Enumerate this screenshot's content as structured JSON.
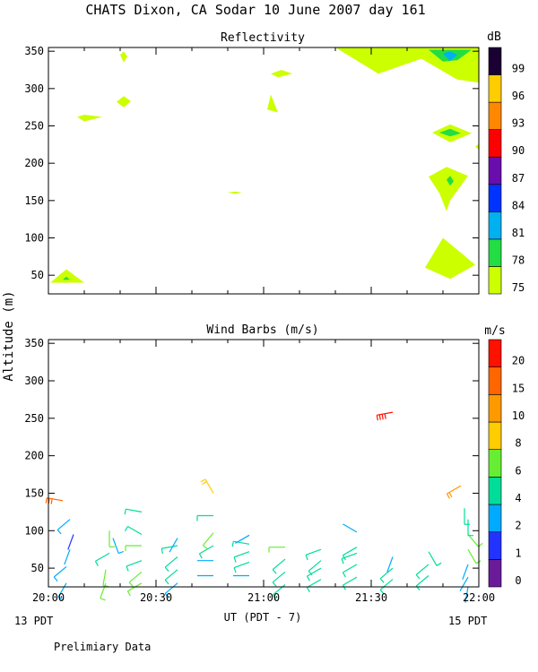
{
  "figure": {
    "title": "CHATS Dixon, CA  Sodar  10 June 2007  day 161",
    "ylabel": "Altitude (m)",
    "xlabel": "UT  (PDT - 7)",
    "start_local": "13 PDT",
    "end_local": "15 PDT",
    "footer": "Prelimiary Data"
  },
  "chart_data": [
    {
      "type": "heatmap",
      "title": "Reflectivity",
      "colorbar_label": "dB",
      "colorbar_ticks": [
        "75",
        "78",
        "81",
        "84",
        "87",
        "90",
        "93",
        "96",
        "99"
      ],
      "colorbar_colors": [
        "#ccff00",
        "#22dd44",
        "#00b0f0",
        "#0033ff",
        "#6a0dad",
        "#ff0000",
        "#ff8800",
        "#ffcc00",
        "#1a0033"
      ],
      "x_ticks": [
        "20:00",
        "20:30",
        "21:00",
        "21:30",
        "22:00"
      ],
      "xlim": [
        0,
        120
      ],
      "y_ticks": [
        50,
        100,
        150,
        200,
        250,
        300,
        350
      ],
      "ylim": [
        25,
        355
      ],
      "regions": [
        {
          "level": 75,
          "points": [
            [
              0.5,
              40
            ],
            [
              5,
              58
            ],
            [
              10,
              40
            ]
          ]
        },
        {
          "level": 78,
          "points": [
            [
              4,
              44
            ],
            [
              5,
              48
            ],
            [
              6,
              44
            ]
          ]
        },
        {
          "level": 75,
          "points": [
            [
              8,
              262
            ],
            [
              10,
              265
            ],
            [
              15,
              262
            ],
            [
              10,
              256
            ]
          ]
        },
        {
          "level": 75,
          "points": [
            [
              19,
              282
            ],
            [
              21,
              290
            ],
            [
              23,
              283
            ],
            [
              21,
              275
            ]
          ]
        },
        {
          "level": 75,
          "points": [
            [
              20,
              345
            ],
            [
              21,
              350
            ],
            [
              22,
              343
            ],
            [
              21,
              335
            ]
          ]
        },
        {
          "level": 75,
          "points": [
            [
              50,
              161
            ],
            [
              52,
              162
            ],
            [
              54,
              161
            ],
            [
              52,
              159
            ]
          ]
        },
        {
          "level": 75,
          "points": [
            [
              61,
              272
            ],
            [
              62,
              292
            ],
            [
              64,
              268
            ]
          ]
        },
        {
          "level": 75,
          "points": [
            [
              62,
              320
            ],
            [
              65,
              325
            ],
            [
              68,
              320
            ],
            [
              64,
              315
            ]
          ]
        },
        {
          "level": 75,
          "points": [
            [
              80,
              355
            ],
            [
              121,
              355
            ],
            [
              121,
              308
            ],
            [
              114,
              312
            ],
            [
              104,
              340
            ],
            [
              92,
              320
            ]
          ]
        },
        {
          "level": 78,
          "points": [
            [
              106,
              352
            ],
            [
              118,
              352
            ],
            [
              114,
              338
            ],
            [
              110,
              336
            ]
          ]
        },
        {
          "level": 81,
          "points": [
            [
              110,
              347
            ],
            [
              112,
              350
            ],
            [
              114,
              345
            ],
            [
              112,
              337
            ]
          ]
        },
        {
          "level": 75,
          "points": [
            [
              107,
              241
            ],
            [
              112,
              252
            ],
            [
              118,
              240
            ],
            [
              112,
              228
            ]
          ]
        },
        {
          "level": 78,
          "points": [
            [
              109,
              241
            ],
            [
              112,
              246
            ],
            [
              115,
              240
            ],
            [
              112,
              236
            ]
          ]
        },
        {
          "level": 75,
          "points": [
            [
              106,
              182
            ],
            [
              111,
              195
            ],
            [
              117,
              183
            ],
            [
              112,
              150
            ],
            [
              111,
              136
            ],
            [
              109,
              160
            ]
          ]
        },
        {
          "level": 78,
          "points": [
            [
              111,
              178
            ],
            [
              112,
              183
            ],
            [
              113,
              176
            ],
            [
              112,
              170
            ]
          ]
        },
        {
          "level": 75,
          "points": [
            [
              119,
              222
            ],
            [
              121,
              226
            ],
            [
              121,
              218
            ]
          ]
        },
        {
          "level": 75,
          "points": [
            [
              105,
              60
            ],
            [
              110,
              100
            ],
            [
              119,
              64
            ],
            [
              112,
              45
            ]
          ]
        }
      ]
    },
    {
      "type": "scatter",
      "title": "Wind Barbs (m/s)",
      "colorbar_label": "m/s",
      "colorbar_ticks": [
        "0",
        "1",
        "2",
        "4",
        "6",
        "8",
        "10",
        "15",
        "20"
      ],
      "colorbar_colors": [
        "#6a1b9a",
        "#2233ff",
        "#00aaff",
        "#00dd99",
        "#66ee33",
        "#ffcc00",
        "#ff9900",
        "#ff6600",
        "#ff1100"
      ],
      "x_ticks": [
        "20:00",
        "20:30",
        "21:00",
        "21:30",
        "22:00"
      ],
      "xlim": [
        0,
        120
      ],
      "y_ticks": [
        50,
        100,
        150,
        200,
        250,
        300,
        350
      ],
      "ylim": [
        25,
        355
      ],
      "barbs": [
        {
          "t": 5,
          "z": 30,
          "dir": 210,
          "speed": 3
        },
        {
          "t": 5,
          "z": 52,
          "dir": 230,
          "speed": 3
        },
        {
          "t": 6,
          "z": 75,
          "dir": 200,
          "speed": 2
        },
        {
          "t": 7,
          "z": 95,
          "dir": 200,
          "speed": 1
        },
        {
          "t": 6,
          "z": 115,
          "dir": 230,
          "speed": 3
        },
        {
          "t": 4,
          "z": 140,
          "dir": 280,
          "speed": 15
        },
        {
          "t": 16,
          "z": 30,
          "dir": 200,
          "speed": 6
        },
        {
          "t": 16,
          "z": 48,
          "dir": 190,
          "speed": 6
        },
        {
          "t": 17,
          "z": 70,
          "dir": 240,
          "speed": 4
        },
        {
          "t": 18,
          "z": 90,
          "dir": 160,
          "speed": 3
        },
        {
          "t": 17,
          "z": 100,
          "dir": 180,
          "speed": 6
        },
        {
          "t": 26,
          "z": 30,
          "dir": 240,
          "speed": 6
        },
        {
          "t": 26,
          "z": 45,
          "dir": 230,
          "speed": 6
        },
        {
          "t": 26,
          "z": 60,
          "dir": 250,
          "speed": 4
        },
        {
          "t": 26,
          "z": 80,
          "dir": 270,
          "speed": 6
        },
        {
          "t": 26,
          "z": 95,
          "dir": 300,
          "speed": 4
        },
        {
          "t": 26,
          "z": 125,
          "dir": 280,
          "speed": 4
        },
        {
          "t": 36,
          "z": 30,
          "dir": 230,
          "speed": 3
        },
        {
          "t": 36,
          "z": 48,
          "dir": 230,
          "speed": 4
        },
        {
          "t": 36,
          "z": 65,
          "dir": 230,
          "speed": 4
        },
        {
          "t": 36,
          "z": 80,
          "dir": 260,
          "speed": 4
        },
        {
          "t": 36,
          "z": 90,
          "dir": 210,
          "speed": 2
        },
        {
          "t": 46,
          "z": 40,
          "dir": 270,
          "speed": 2
        },
        {
          "t": 46,
          "z": 60,
          "dir": 270,
          "speed": 2
        },
        {
          "t": 46,
          "z": 80,
          "dir": 240,
          "speed": 4
        },
        {
          "t": 46,
          "z": 97,
          "dir": 220,
          "speed": 6
        },
        {
          "t": 46,
          "z": 120,
          "dir": 270,
          "speed": 4
        },
        {
          "t": 46,
          "z": 150,
          "dir": 330,
          "speed": 8
        },
        {
          "t": 56,
          "z": 40,
          "dir": 270,
          "speed": 2
        },
        {
          "t": 56,
          "z": 58,
          "dir": 250,
          "speed": 4
        },
        {
          "t": 56,
          "z": 72,
          "dir": 250,
          "speed": 4
        },
        {
          "t": 56,
          "z": 82,
          "dir": 280,
          "speed": 4
        },
        {
          "t": 56,
          "z": 94,
          "dir": 240,
          "speed": 2
        },
        {
          "t": 66,
          "z": 28,
          "dir": 230,
          "speed": 4
        },
        {
          "t": 66,
          "z": 45,
          "dir": 230,
          "speed": 4
        },
        {
          "t": 66,
          "z": 62,
          "dir": 230,
          "speed": 4
        },
        {
          "t": 66,
          "z": 78,
          "dir": 270,
          "speed": 6
        },
        {
          "t": 76,
          "z": 35,
          "dir": 240,
          "speed": 4
        },
        {
          "t": 76,
          "z": 50,
          "dir": 240,
          "speed": 4
        },
        {
          "t": 76,
          "z": 60,
          "dir": 230,
          "speed": 4
        },
        {
          "t": 76,
          "z": 75,
          "dir": 250,
          "speed": 4
        },
        {
          "t": 86,
          "z": 38,
          "dir": 240,
          "speed": 4
        },
        {
          "t": 86,
          "z": 55,
          "dir": 240,
          "speed": 4
        },
        {
          "t": 86,
          "z": 70,
          "dir": 250,
          "speed": 4
        },
        {
          "t": 86,
          "z": 78,
          "dir": 240,
          "speed": 4
        },
        {
          "t": 86,
          "z": 98,
          "dir": 300,
          "speed": 2
        },
        {
          "t": 96,
          "z": 258,
          "dir": 260,
          "speed": 20
        },
        {
          "t": 96,
          "z": 35,
          "dir": 230,
          "speed": 4
        },
        {
          "t": 96,
          "z": 50,
          "dir": 230,
          "speed": 4
        },
        {
          "t": 96,
          "z": 65,
          "dir": 200,
          "speed": 2
        },
        {
          "t": 106,
          "z": 40,
          "dir": 230,
          "speed": 4
        },
        {
          "t": 106,
          "z": 55,
          "dir": 230,
          "speed": 4
        },
        {
          "t": 106,
          "z": 72,
          "dir": 150,
          "speed": 4
        },
        {
          "t": 117,
          "z": 25,
          "dir": 190,
          "speed": 2
        },
        {
          "t": 117,
          "z": 38,
          "dir": 210,
          "speed": 2
        },
        {
          "t": 117,
          "z": 55,
          "dir": 200,
          "speed": 2
        },
        {
          "t": 117,
          "z": 75,
          "dir": 150,
          "speed": 6
        },
        {
          "t": 117,
          "z": 95,
          "dir": 140,
          "speed": 6
        },
        {
          "t": 117,
          "z": 115,
          "dir": 180,
          "speed": 4
        },
        {
          "t": 116,
          "z": 130,
          "dir": 180,
          "speed": 4
        },
        {
          "t": 115,
          "z": 160,
          "dir": 240,
          "speed": 10
        }
      ]
    }
  ]
}
